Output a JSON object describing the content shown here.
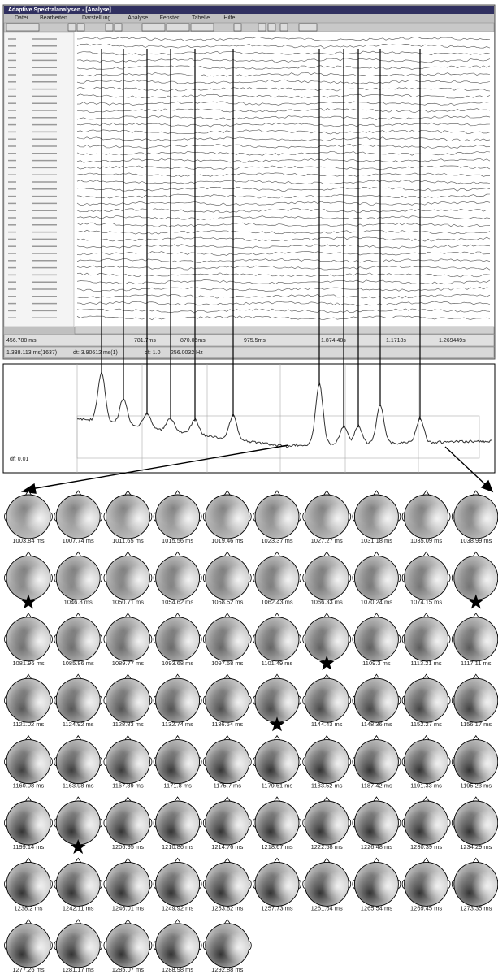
{
  "window": {
    "title": "Adaptive Spektralanalysen - [Analyse]",
    "menu": [
      "Datei",
      "Bearbeiten",
      "Darstellung",
      "Analyse",
      "Fenster",
      "Tabelle",
      "Hilfe"
    ],
    "status": [
      "456.788 ms",
      "781.7ms",
      "870.05ms",
      "975.5ms",
      "1.874.48s",
      "1.1718s",
      "1.269449s"
    ],
    "status2": [
      "1.338.113 ms(1637)",
      "dt: 3.90612 ms(1)",
      "df: 1.0",
      "256.0032 Hz"
    ],
    "lower_label": "df: 0.01"
  },
  "maps": [
    "1003.84 ms",
    "1007.74 ms",
    "1011.65 ms",
    "1015.56 ms",
    "1019.46 ms",
    "1023.37 ms",
    "1027.27 ms",
    "1031.18 ms",
    "1035.09 ms",
    "1038.99 ms",
    null,
    "1046.8 ms",
    "1050.71 ms",
    "1054.62 ms",
    "1058.52 ms",
    "1062.43 ms",
    "1066.33 ms",
    "1070.24 ms",
    "1074.15 ms",
    null,
    "1081.96 ms",
    "1085.86 ms",
    "1089.77 ms",
    "1093.68 ms",
    "1097.58 ms",
    "1101.49 ms",
    null,
    "1109.3 ms",
    "1113.21 ms",
    "1117.11 ms",
    "1121.02 ms",
    "1124.92 ms",
    "1128.83 ms",
    "1132.74 ms",
    "1136.64 ms",
    null,
    "1144.43 ms",
    "1148.36 ms",
    "1152.27 ms",
    "1156.17 ms",
    "1160.08 ms",
    "1163.98 ms",
    "1167.89 ms",
    "1171.8 ms",
    "1175.7 ms",
    "1179.61 ms",
    "1183.52 ms",
    "1187.42 ms",
    "1191.33 ms",
    "1195.23 ms",
    "1199.14 ms",
    null,
    "1206.95 ms",
    "1210.86 ms",
    "1214.76 ms",
    "1218.67 ms",
    "1222.58 ms",
    "1226.48 ms",
    "1230.39 ms",
    "1234.29 ms",
    "1238.2 ms",
    "1242.11 ms",
    "1246.01 ms",
    "1249.92 ms",
    "1253.82 ms",
    "1257.73 ms",
    "1261.64 ms",
    "1265.54 ms",
    "1269.45 ms",
    "1273.35 ms",
    "1277.26 ms",
    "1281.17 ms",
    "1285.07 ms",
    "1288.98 ms",
    "1292.88 ms"
  ]
}
